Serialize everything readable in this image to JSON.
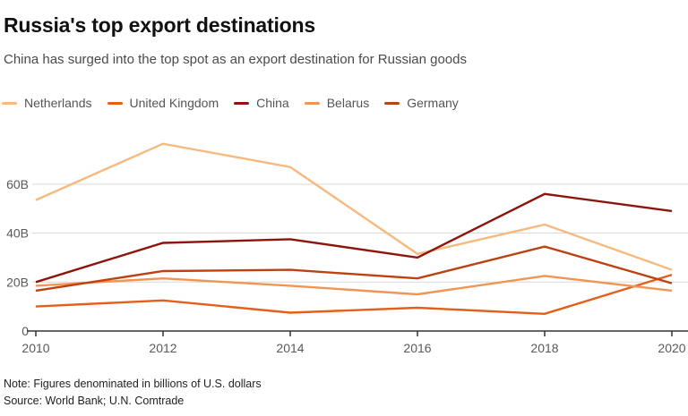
{
  "header": {
    "title": "Russia's top export destinations",
    "subtitle": "China has surged into the top spot as an export destination for Russian goods"
  },
  "legend": [
    {
      "label": "Netherlands",
      "color": "#f6b97e"
    },
    {
      "label": "United Kingdom",
      "color": "#e2601c"
    },
    {
      "label": "China",
      "color": "#8c160d"
    },
    {
      "label": "Belarus",
      "color": "#f09553"
    },
    {
      "label": "Germany",
      "color": "#bf4112"
    }
  ],
  "chart_data": {
    "type": "line",
    "x": [
      2010,
      2012,
      2014,
      2016,
      2018,
      2020
    ],
    "x_tick_labels": [
      "2010",
      "2012",
      "2014",
      "2016",
      "2018",
      "2020"
    ],
    "series": [
      {
        "name": "Netherlands",
        "color": "#f6b97e",
        "values": [
          53.5,
          76.5,
          67.0,
          31.5,
          43.5,
          25.0
        ]
      },
      {
        "name": "United Kingdom",
        "color": "#e2601c",
        "values": [
          10.0,
          12.5,
          7.5,
          9.5,
          7.0,
          23.0
        ]
      },
      {
        "name": "China",
        "color": "#8c160d",
        "values": [
          20.0,
          36.0,
          37.5,
          30.0,
          56.0,
          49.0
        ]
      },
      {
        "name": "Belarus",
        "color": "#f09553",
        "values": [
          18.5,
          21.5,
          18.5,
          15.0,
          22.5,
          16.5
        ]
      },
      {
        "name": "Germany",
        "color": "#bf4112",
        "values": [
          16.5,
          24.5,
          25.0,
          21.5,
          34.5,
          19.5
        ]
      }
    ],
    "y_ticks": [
      {
        "value": 0,
        "label": "0"
      },
      {
        "value": 20,
        "label": "20B"
      },
      {
        "value": 40,
        "label": "40B"
      },
      {
        "value": 60,
        "label": "60B"
      }
    ],
    "ylim": [
      0,
      81.5
    ],
    "unit": "billions of U.S. dollars",
    "grid": "horizontal",
    "legend_position": "top",
    "colors": {
      "gridline": "#d9d9d9",
      "axis": "#333333",
      "tick_label": "#595959"
    }
  },
  "footer": {
    "note": "Note: Figures denominated in billions of U.S. dollars",
    "source": "Source: World Bank; U.N. Comtrade"
  }
}
